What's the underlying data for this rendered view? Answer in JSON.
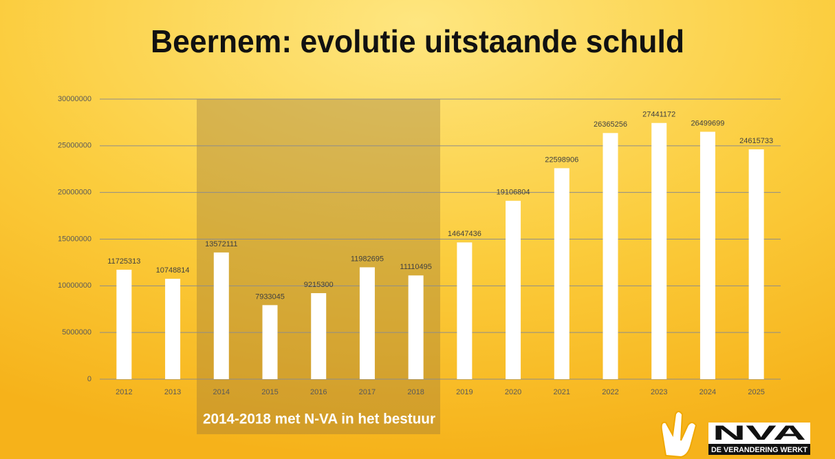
{
  "chart_data": {
    "type": "bar",
    "title": "Beernem: evolutie uitstaande schuld",
    "categories": [
      "2012",
      "2013",
      "2014",
      "2015",
      "2016",
      "2017",
      "2018",
      "2019",
      "2020",
      "2021",
      "2022",
      "2023",
      "2024",
      "2025"
    ],
    "values": [
      11725313,
      10748814,
      13572111,
      7933045,
      9215300,
      11982695,
      11110495,
      14647436,
      19106804,
      22598906,
      26365256,
      27441172,
      26499699,
      24615733
    ],
    "color": "#ffffff",
    "ylim": [
      0,
      30000000
    ],
    "yticks": [
      0,
      5000000,
      10000000,
      15000000,
      20000000,
      25000000,
      30000000
    ],
    "grid": true,
    "annotation": "2014-2018 met N-VA in het bestuur"
  },
  "logo": {
    "name": "NVA",
    "slogan": "DE VERANDERING WERKT"
  }
}
